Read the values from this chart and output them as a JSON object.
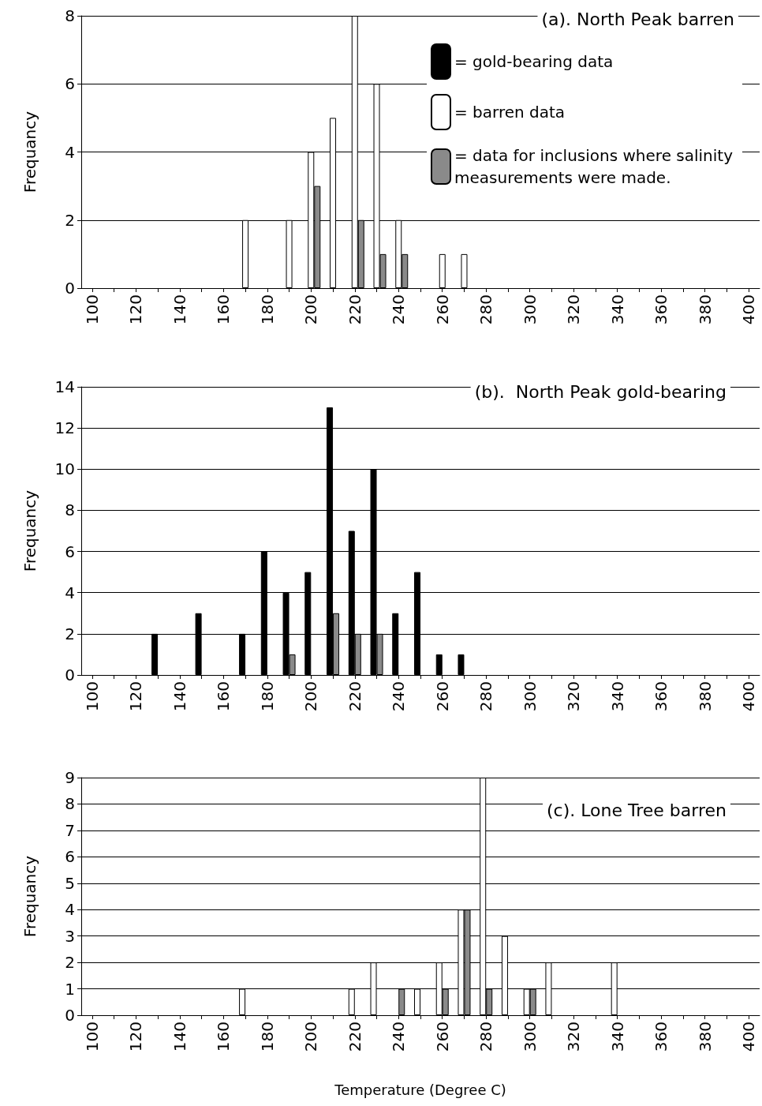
{
  "chart_data": [
    {
      "type": "bar",
      "title": "(a). North Peak barren",
      "ylabel": "Frequancy",
      "categories": [
        "100",
        null,
        "120",
        null,
        "140",
        null,
        "160",
        null,
        "180",
        null,
        "200",
        null,
        "220",
        null,
        "240",
        null,
        "260",
        null,
        "280",
        null,
        "300",
        null,
        "320",
        null,
        "340",
        null,
        "360",
        null,
        "380",
        null,
        "400"
      ],
      "ylim": [
        0,
        8
      ],
      "yticks": [
        0,
        2,
        4,
        6,
        8
      ],
      "grid": "y",
      "legend": "top right",
      "series": [
        {
          "name": "= gold-bearing data",
          "color": "#000000",
          "values": [
            null,
            null,
            null,
            null,
            null,
            null,
            null,
            null,
            null,
            null,
            null,
            null,
            null,
            null,
            null,
            null,
            null,
            null,
            null,
            null,
            null,
            null,
            null,
            null,
            null,
            null,
            null,
            null,
            null,
            null,
            null
          ]
        },
        {
          "name": "= barren data",
          "color": "#ffffff",
          "values": [
            null,
            null,
            null,
            null,
            null,
            null,
            null,
            2,
            null,
            2,
            4,
            5,
            8,
            6,
            2,
            null,
            1,
            1,
            null,
            null,
            null,
            null,
            null,
            null,
            null,
            null,
            null,
            null,
            null,
            null,
            null
          ]
        },
        {
          "name": "= data for inclusions where salinity measurements were made.",
          "color": "#8a8a8a",
          "values": [
            null,
            null,
            null,
            null,
            null,
            null,
            null,
            null,
            null,
            null,
            3,
            null,
            2,
            1,
            1,
            null,
            null,
            null,
            null,
            null,
            null,
            null,
            null,
            null,
            null,
            null,
            null,
            null,
            null,
            null,
            null
          ]
        }
      ]
    },
    {
      "type": "bar",
      "title": "(b).  North Peak gold-bearing",
      "ylabel": "Frequancy",
      "categories": [
        "100",
        null,
        "120",
        null,
        "140",
        null,
        "160",
        null,
        "180",
        null,
        "200",
        null,
        "220",
        null,
        "240",
        null,
        "260",
        null,
        "280",
        null,
        "300",
        null,
        "320",
        null,
        "340",
        null,
        "360",
        null,
        "380",
        null,
        "400"
      ],
      "ylim": [
        0,
        14
      ],
      "yticks": [
        0,
        2,
        4,
        6,
        8,
        10,
        12,
        14
      ],
      "grid": "y",
      "series": [
        {
          "color": "#000000",
          "values": [
            null,
            null,
            null,
            2,
            null,
            3,
            null,
            2,
            6,
            4,
            5,
            13,
            7,
            10,
            3,
            5,
            1,
            1,
            null,
            null,
            null,
            null,
            null,
            null,
            null,
            null,
            null,
            null,
            null,
            null,
            null
          ]
        },
        {
          "color": "#8a8a8a",
          "values": [
            null,
            null,
            null,
            null,
            null,
            null,
            null,
            null,
            null,
            1,
            null,
            3,
            2,
            2,
            null,
            null,
            null,
            null,
            null,
            null,
            null,
            null,
            null,
            null,
            null,
            null,
            null,
            null,
            null,
            null,
            null
          ]
        }
      ]
    },
    {
      "type": "bar",
      "title": "(c). Lone Tree barren",
      "ylabel": "Frequancy",
      "xlabel": "Temperature (Degree C)",
      "categories": [
        "100",
        null,
        "120",
        null,
        "140",
        null,
        "160",
        null,
        "180",
        null,
        "200",
        null,
        "220",
        null,
        "240",
        null,
        "260",
        null,
        "280",
        null,
        "300",
        null,
        "320",
        null,
        "340",
        null,
        "360",
        null,
        "380",
        null,
        "400"
      ],
      "ylim": [
        0,
        9
      ],
      "yticks": [
        0,
        1,
        2,
        3,
        4,
        5,
        6,
        7,
        8,
        9
      ],
      "grid": "y",
      "series": [
        {
          "color": "#ffffff",
          "values": [
            null,
            null,
            null,
            null,
            null,
            null,
            null,
            1,
            null,
            null,
            null,
            null,
            1,
            2,
            null,
            1,
            2,
            4,
            9,
            3,
            1,
            2,
            null,
            null,
            2,
            null,
            null,
            null,
            null,
            null,
            null
          ]
        },
        {
          "color": "#8a8a8a",
          "values": [
            null,
            null,
            null,
            null,
            null,
            null,
            null,
            null,
            null,
            null,
            null,
            null,
            null,
            null,
            1,
            null,
            1,
            4,
            1,
            null,
            1,
            null,
            null,
            null,
            null,
            null,
            null,
            null,
            null,
            null,
            null
          ]
        }
      ]
    }
  ]
}
